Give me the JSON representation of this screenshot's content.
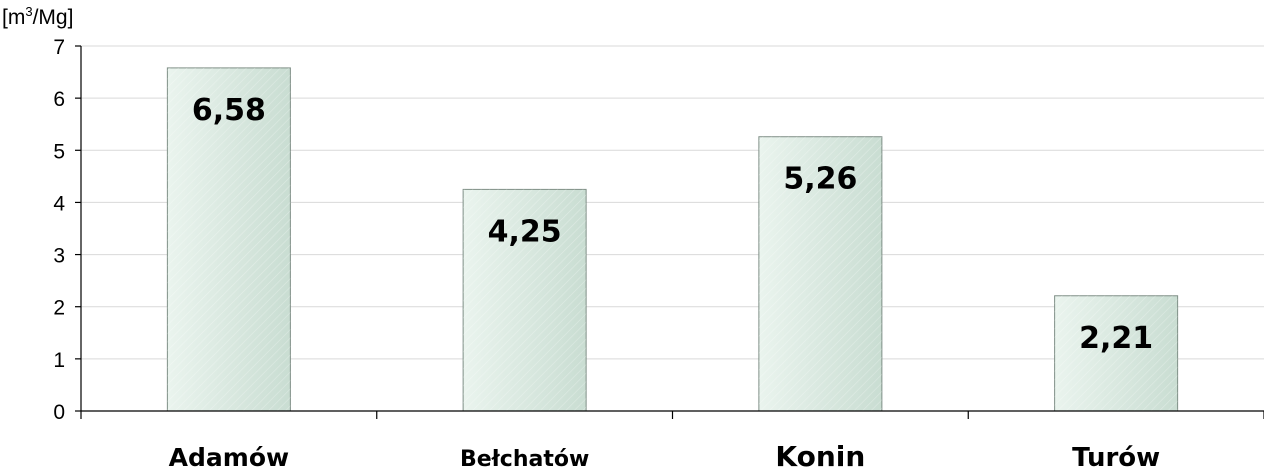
{
  "chart_data": {
    "type": "bar",
    "categories": [
      "Adamów",
      "Bełchatów",
      "Konin",
      "Turów"
    ],
    "values": [
      6.58,
      4.25,
      5.26,
      2.21
    ],
    "data_labels": [
      "6,58",
      "4,25",
      "5,26",
      "2,21"
    ],
    "ylabel": {
      "prefix": "[m",
      "superscript": "3",
      "suffix": "/Mg]"
    },
    "xlabel": "",
    "title": "",
    "ylim": [
      0,
      7
    ],
    "yticks": [
      "0",
      "1",
      "2",
      "3",
      "4",
      "5",
      "6",
      "7"
    ],
    "grid": true,
    "legend": "none",
    "colors": {
      "bar_fill_light": "#eaf4ee",
      "bar_fill_dark": "#c9ddd2",
      "bar_border": "#7f8f86",
      "grid": "#d9d9d9"
    }
  }
}
